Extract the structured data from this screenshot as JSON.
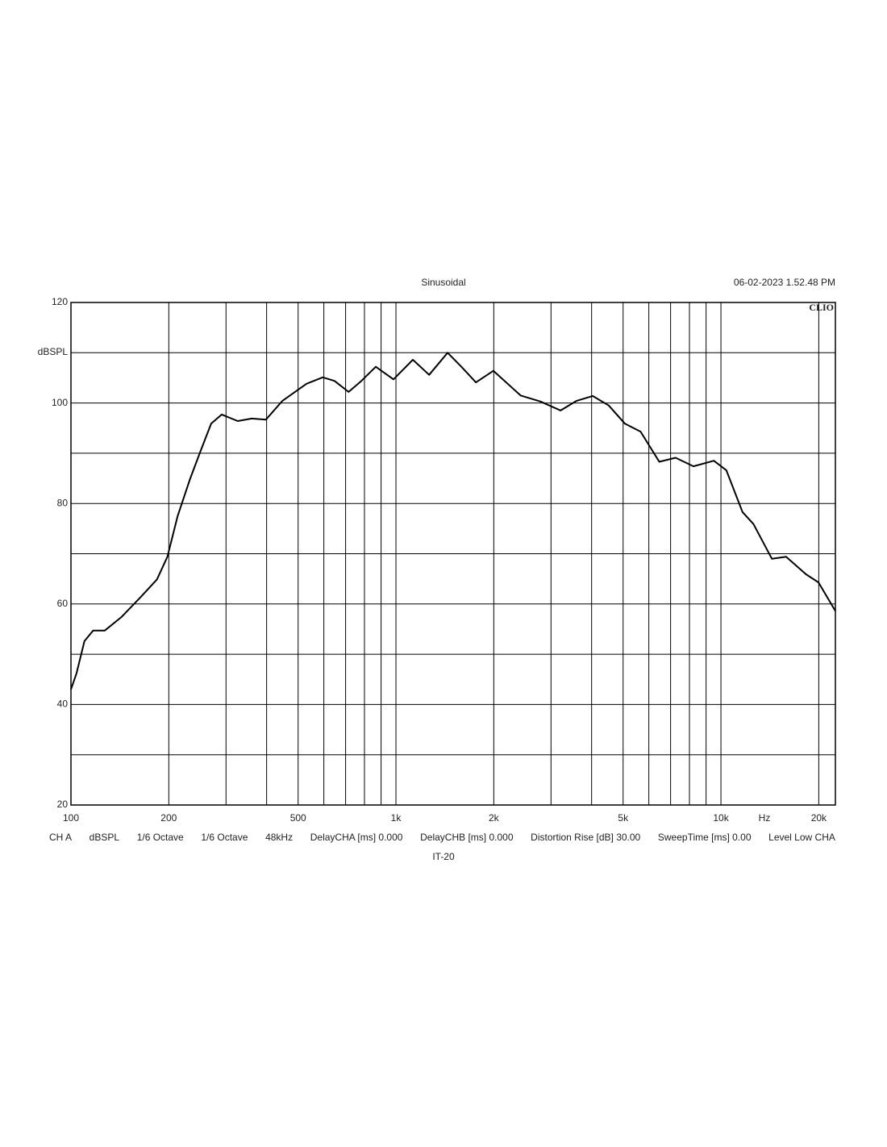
{
  "chart_data": {
    "type": "line",
    "title": "Sinusoidal",
    "timestamp": "06-02-2023 1.52.48 PM",
    "brand": "CLIO",
    "ylabel": "dBSPL",
    "xlabel": "Hz",
    "subtitle": "IT-20",
    "settings_line": [
      "CH A",
      "dBSPL",
      "1/6 Octave",
      "1/6 Octave",
      "48kHz",
      "DelayCHA [ms] 0.000",
      "DelayCHB [ms] 0.000",
      "Distortion Rise [dB] 30.00",
      "SweepTime [ms] 0.00",
      "Level Low CHA"
    ],
    "xlog": true,
    "grid": true,
    "xlim": [
      100,
      22500
    ],
    "ylim": [
      20,
      120
    ],
    "xticks": [
      100,
      200,
      500,
      {
        "value": 1000,
        "label": "1k"
      },
      {
        "value": 2000,
        "label": "2k"
      },
      {
        "value": 5000,
        "label": "5k"
      },
      {
        "value": 10000,
        "label": "10k"
      },
      {
        "value": 20000,
        "label": "20k"
      }
    ],
    "yticks": [
      20,
      40,
      60,
      80,
      100,
      120
    ],
    "xgrid": [
      300,
      400,
      600,
      700,
      800,
      900,
      3000,
      4000,
      6000,
      7000,
      8000,
      9000
    ],
    "ygrid": [
      30,
      50,
      70,
      90,
      110
    ],
    "series": [
      {
        "name": "CH A",
        "color": "#000000",
        "x": [
          100,
          104,
          110,
          117,
          127,
          143,
          164,
          184,
          198,
          213,
          232,
          250,
          270,
          291,
          326,
          360,
          398,
          447,
          530,
          595,
          647,
          715,
          783,
          867,
          983,
          1127,
          1265,
          1442,
          1590,
          1762,
          1995,
          2418,
          2780,
          3210,
          3590,
          4030,
          4515,
          5060,
          5660,
          6460,
          7250,
          8230,
          9510,
          10390,
          11650,
          12590,
          14340,
          15870,
          18280,
          19960,
          22500
        ],
        "values": [
          43,
          46.2,
          52.6,
          54.7,
          54.7,
          57.4,
          61.4,
          64.9,
          69.4,
          77.5,
          84.7,
          90.3,
          95.9,
          97.7,
          96.4,
          96.9,
          96.7,
          100.4,
          103.8,
          105.1,
          104.4,
          102.2,
          104.4,
          107.2,
          104.7,
          108.6,
          105.6,
          110,
          107.2,
          104.1,
          106.4,
          101.5,
          100.3,
          98.5,
          100.4,
          101.4,
          99.5,
          95.9,
          94.3,
          88.3,
          89.1,
          87.4,
          88.5,
          86.6,
          78.3,
          75.9,
          69,
          69.4,
          65.9,
          64.3,
          58.6
        ]
      }
    ]
  }
}
